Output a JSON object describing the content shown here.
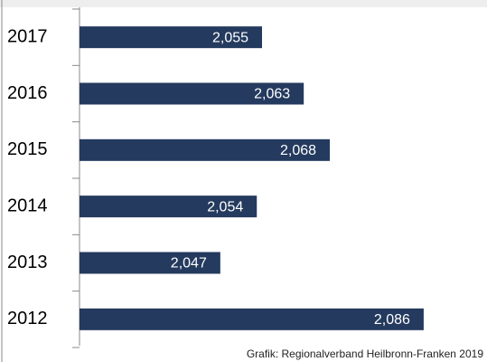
{
  "chart_data": {
    "type": "barh",
    "categories": [
      "2017",
      "2016",
      "2015",
      "2014",
      "2013",
      "2012"
    ],
    "values": [
      2055,
      2063,
      2068,
      2054,
      2047,
      2086
    ],
    "value_labels": [
      "2,055",
      "2,063",
      "2,068",
      "2,054",
      "2,047",
      "2,086"
    ],
    "color": "#243a5e",
    "xlim": [
      2020,
      2090
    ],
    "source": "Grafik: Regionalverband Heilbronn-Franken 2019"
  }
}
